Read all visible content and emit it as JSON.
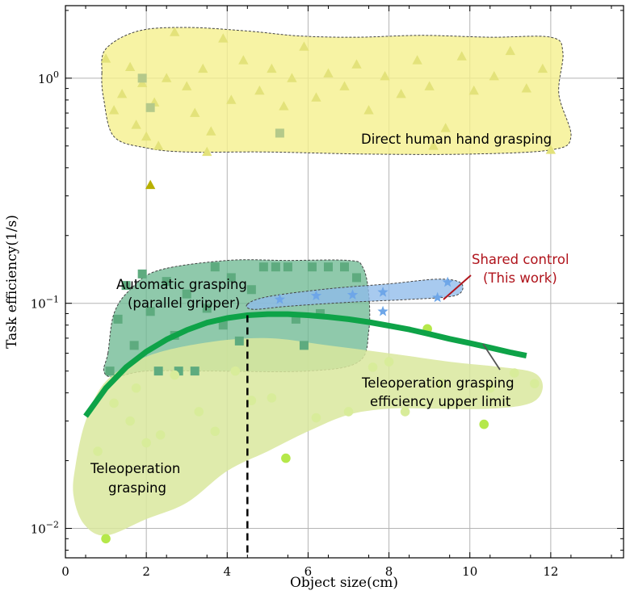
{
  "chart_data": {
    "type": "scatter",
    "xlabel": "Object size(cm)",
    "ylabel": "Task efficiency(1/s)",
    "xlim": [
      0,
      13.8
    ],
    "ylim": [
      0.0074,
      2.1
    ],
    "yscale": "log",
    "grid": true,
    "x_ticks": [
      0,
      2,
      4,
      6,
      8,
      10,
      12
    ],
    "y_ticks": [
      {
        "value": 0.01,
        "base": "10",
        "exp": "−2"
      },
      {
        "value": 0.1,
        "base": "10",
        "exp": "−1"
      },
      {
        "value": 1,
        "base": "10",
        "exp": "0"
      }
    ],
    "regions": [
      {
        "label": "Direct human hand grasping",
        "color": "#f5f08a",
        "polygon": [
          [
            0.9,
            1.05
          ],
          [
            1.0,
            1.35
          ],
          [
            1.8,
            1.62
          ],
          [
            3.0,
            1.68
          ],
          [
            4.5,
            1.62
          ],
          [
            5.8,
            1.54
          ],
          [
            7.2,
            1.52
          ],
          [
            8.8,
            1.55
          ],
          [
            10.5,
            1.52
          ],
          [
            12.0,
            1.52
          ],
          [
            12.3,
            1.3
          ],
          [
            12.2,
            0.85
          ],
          [
            12.5,
            0.55
          ],
          [
            12.0,
            0.48
          ],
          [
            10.0,
            0.46
          ],
          [
            7.5,
            0.46
          ],
          [
            5.0,
            0.47
          ],
          [
            3.0,
            0.47
          ],
          [
            2.0,
            0.49
          ],
          [
            1.2,
            0.55
          ],
          [
            0.95,
            0.8
          ]
        ]
      },
      {
        "label": "Automatic grasping (parallel gripper)",
        "color": "#6fba93",
        "polygon": [
          [
            1.05,
            0.06
          ],
          [
            1.2,
            0.09
          ],
          [
            1.6,
            0.115
          ],
          [
            2.3,
            0.14
          ],
          [
            4.0,
            0.155
          ],
          [
            5.5,
            0.155
          ],
          [
            7.0,
            0.155
          ],
          [
            7.35,
            0.145
          ],
          [
            7.5,
            0.11
          ],
          [
            7.5,
            0.075
          ],
          [
            7.25,
            0.055
          ],
          [
            6.0,
            0.05
          ],
          [
            3.5,
            0.05
          ],
          [
            2.0,
            0.05
          ],
          [
            1.2,
            0.047
          ],
          [
            0.95,
            0.05
          ]
        ]
      },
      {
        "label": "Shared control (This work)",
        "color": "#8fbbea",
        "polygon": [
          [
            4.5,
            0.099
          ],
          [
            5.0,
            0.107
          ],
          [
            6.5,
            0.116
          ],
          [
            8.0,
            0.122
          ],
          [
            9.2,
            0.128
          ],
          [
            9.75,
            0.124
          ],
          [
            9.8,
            0.113
          ],
          [
            9.5,
            0.107
          ],
          [
            8.5,
            0.104
          ],
          [
            7.0,
            0.101
          ],
          [
            5.5,
            0.097
          ],
          [
            4.65,
            0.094
          ]
        ]
      },
      {
        "label": "Teleoperation grasping",
        "color": "#d9e89e",
        "polygon": [
          [
            0.25,
            0.019
          ],
          [
            0.5,
            0.03
          ],
          [
            1.0,
            0.045
          ],
          [
            2.0,
            0.058
          ],
          [
            3.5,
            0.067
          ],
          [
            5.0,
            0.07
          ],
          [
            6.5,
            0.065
          ],
          [
            8.0,
            0.06
          ],
          [
            9.5,
            0.055
          ],
          [
            10.8,
            0.052
          ],
          [
            11.6,
            0.049
          ],
          [
            11.8,
            0.042
          ],
          [
            11.5,
            0.036
          ],
          [
            10.5,
            0.034
          ],
          [
            9.0,
            0.034
          ],
          [
            8.0,
            0.034
          ],
          [
            7.0,
            0.032
          ],
          [
            6.0,
            0.027
          ],
          [
            5.0,
            0.022
          ],
          [
            4.0,
            0.018
          ],
          [
            3.0,
            0.013
          ],
          [
            2.0,
            0.011
          ],
          [
            1.0,
            0.0093
          ],
          [
            0.45,
            0.0105
          ],
          [
            0.2,
            0.014
          ]
        ]
      }
    ],
    "series": [
      {
        "marker": "triangle",
        "color": "#e3e27a",
        "points": [
          [
            1.0,
            1.22
          ],
          [
            1.2,
            0.72
          ],
          [
            1.4,
            0.85
          ],
          [
            1.6,
            1.12
          ],
          [
            1.75,
            0.62
          ],
          [
            1.9,
            0.95
          ],
          [
            2.0,
            0.55
          ],
          [
            2.2,
            0.78
          ],
          [
            2.5,
            1.0
          ],
          [
            2.7,
            1.6
          ],
          [
            3.0,
            0.92
          ],
          [
            3.2,
            0.7
          ],
          [
            3.4,
            1.1
          ],
          [
            3.6,
            0.58
          ],
          [
            3.9,
            1.5
          ],
          [
            4.1,
            0.8
          ],
          [
            4.4,
            1.2
          ],
          [
            4.8,
            0.88
          ],
          [
            5.1,
            1.1
          ],
          [
            5.4,
            0.75
          ],
          [
            5.6,
            1.0
          ],
          [
            5.9,
            1.38
          ],
          [
            6.2,
            0.82
          ],
          [
            6.5,
            1.05
          ],
          [
            6.9,
            0.92
          ],
          [
            7.2,
            1.15
          ],
          [
            7.5,
            0.72
          ],
          [
            7.9,
            1.02
          ],
          [
            8.3,
            0.85
          ],
          [
            8.7,
            1.2
          ],
          [
            9.0,
            0.92
          ],
          [
            9.4,
            0.6
          ],
          [
            9.8,
            1.25
          ],
          [
            10.1,
            0.88
          ],
          [
            10.6,
            1.02
          ],
          [
            11.0,
            1.32
          ],
          [
            11.4,
            0.9
          ],
          [
            11.8,
            1.1
          ],
          [
            12.0,
            0.48
          ],
          [
            9.1,
            0.5
          ],
          [
            3.5,
            0.47
          ],
          [
            2.3,
            0.5
          ]
        ]
      },
      {
        "marker": "triangle",
        "color": "#b8b000",
        "points": [
          [
            2.1,
            0.335
          ]
        ]
      },
      {
        "marker": "square",
        "color": "#b5c98a",
        "points": [
          [
            1.9,
            1.0
          ],
          [
            2.1,
            0.74
          ],
          [
            5.3,
            0.57
          ]
        ]
      },
      {
        "marker": "square",
        "color": "#5eab7f",
        "points": [
          [
            1.1,
            0.05
          ],
          [
            1.3,
            0.085
          ],
          [
            1.5,
            0.12
          ],
          [
            1.7,
            0.065
          ],
          [
            1.9,
            0.135
          ],
          [
            2.1,
            0.092
          ],
          [
            2.3,
            0.05
          ],
          [
            2.5,
            0.125
          ],
          [
            2.7,
            0.072
          ],
          [
            3.0,
            0.11
          ],
          [
            3.2,
            0.05
          ],
          [
            3.5,
            0.095
          ],
          [
            3.7,
            0.145
          ],
          [
            3.9,
            0.08
          ],
          [
            4.1,
            0.13
          ],
          [
            4.3,
            0.068
          ],
          [
            4.6,
            0.115
          ],
          [
            4.9,
            0.145
          ],
          [
            5.2,
            0.145
          ],
          [
            5.5,
            0.145
          ],
          [
            5.7,
            0.085
          ],
          [
            6.1,
            0.145
          ],
          [
            6.5,
            0.145
          ],
          [
            6.9,
            0.145
          ],
          [
            7.2,
            0.13
          ],
          [
            6.3,
            0.09
          ],
          [
            5.9,
            0.065
          ],
          [
            2.8,
            0.05
          ]
        ]
      },
      {
        "marker": "star",
        "color": "#6ea6e8",
        "points": [
          [
            5.3,
            0.104
          ],
          [
            6.2,
            0.108
          ],
          [
            7.1,
            0.109
          ],
          [
            7.85,
            0.112
          ],
          [
            9.45,
            0.124
          ],
          [
            7.85,
            0.092
          ],
          [
            9.2,
            0.106
          ]
        ]
      },
      {
        "marker": "circle",
        "color": "#b5e84a",
        "points": [
          [
            1.0,
            0.009
          ],
          [
            5.45,
            0.0205
          ],
          [
            8.95,
            0.077
          ],
          [
            10.35,
            0.029
          ]
        ]
      },
      {
        "marker": "circle",
        "color": "#d8ec9a",
        "points": [
          [
            0.8,
            0.022
          ],
          [
            1.2,
            0.036
          ],
          [
            1.6,
            0.03
          ],
          [
            1.75,
            0.042
          ],
          [
            2.0,
            0.024
          ],
          [
            2.35,
            0.026
          ],
          [
            2.7,
            0.048
          ],
          [
            3.3,
            0.033
          ],
          [
            3.7,
            0.027
          ],
          [
            4.2,
            0.05
          ],
          [
            4.6,
            0.037
          ],
          [
            5.1,
            0.038
          ],
          [
            6.2,
            0.031
          ],
          [
            7.0,
            0.033
          ],
          [
            7.6,
            0.052
          ],
          [
            8.0,
            0.055
          ],
          [
            8.4,
            0.033
          ],
          [
            9.3,
            0.044
          ],
          [
            10.5,
            0.042
          ],
          [
            11.1,
            0.049
          ],
          [
            11.6,
            0.044
          ]
        ]
      }
    ],
    "upper_limit_curve": {
      "color": "#0ea348",
      "points": [
        [
          0.5,
          0.0315
        ],
        [
          1.0,
          0.042
        ],
        [
          1.5,
          0.052
        ],
        [
          2.0,
          0.061
        ],
        [
          2.5,
          0.069
        ],
        [
          3.0,
          0.076
        ],
        [
          3.5,
          0.082
        ],
        [
          4.0,
          0.086
        ],
        [
          4.5,
          0.0885
        ],
        [
          5.0,
          0.0895
        ],
        [
          5.5,
          0.0895
        ],
        [
          6.0,
          0.0885
        ],
        [
          6.5,
          0.087
        ],
        [
          7.0,
          0.085
        ],
        [
          7.5,
          0.0825
        ],
        [
          8.0,
          0.0795
        ],
        [
          8.5,
          0.0765
        ],
        [
          9.0,
          0.073
        ],
        [
          9.5,
          0.0695
        ],
        [
          10.0,
          0.0665
        ],
        [
          10.5,
          0.0635
        ],
        [
          11.0,
          0.0605
        ],
        [
          11.4,
          0.0585
        ]
      ]
    },
    "dashed_line": {
      "x": 4.5,
      "y_top": 0.0885
    },
    "annotations": {
      "human": "Direct human hand grasping",
      "auto_line1": "Automatic grasping",
      "auto_line2": "(parallel gripper)",
      "shared_line1": "Shared control",
      "shared_line2": "(This work)",
      "tele_limit_line1": "Teleoperation grasping",
      "tele_limit_line2": "efficiency upper limit",
      "tele_line1": "Teleoperation",
      "tele_line2": "grasping"
    }
  }
}
